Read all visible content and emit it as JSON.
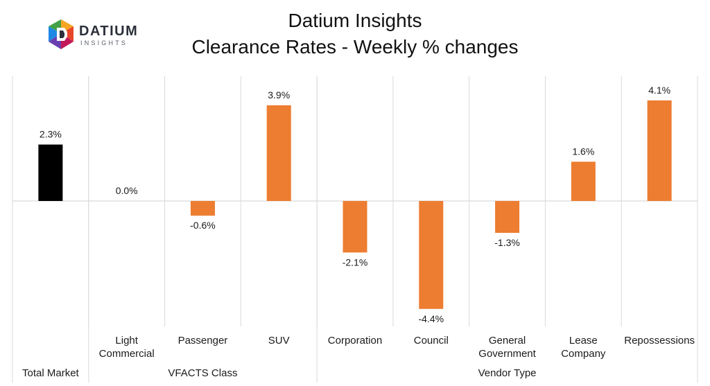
{
  "logo": {
    "word": "DATIUM",
    "sub": "INSIGHTS"
  },
  "chart_data": {
    "type": "bar",
    "title": "Datium Insights",
    "subtitle": "Clearance Rates - Weekly % changes",
    "categories": [
      "",
      "Light Commercial",
      "Passenger",
      "SUV",
      "Corporation",
      "Council",
      "General Government",
      "Lease Company",
      "Repossessions"
    ],
    "category_lines": [
      [
        ""
      ],
      [
        "Light",
        "Commercial"
      ],
      [
        "Passenger"
      ],
      [
        "SUV"
      ],
      [
        "Corporation"
      ],
      [
        "Council"
      ],
      [
        "General",
        "Government"
      ],
      [
        "Lease",
        "Company"
      ],
      [
        "Repossessions"
      ]
    ],
    "values": [
      2.3,
      0.0,
      -0.6,
      3.9,
      -2.1,
      -4.4,
      -1.3,
      1.6,
      4.1
    ],
    "data_labels": [
      "2.3%",
      "0.0%",
      "-0.6%",
      "3.9%",
      "-2.1%",
      "-4.4%",
      "-1.3%",
      "1.6%",
      "4.1%"
    ],
    "bar_colors": [
      "#000000",
      "#ED7D31",
      "#ED7D31",
      "#ED7D31",
      "#ED7D31",
      "#ED7D31",
      "#ED7D31",
      "#ED7D31",
      "#ED7D31"
    ],
    "groups": [
      {
        "label": "Total Market",
        "categories": [
          0
        ]
      },
      {
        "label": "VFACTS Class",
        "categories": [
          1,
          2,
          3
        ]
      },
      {
        "label": "Vendor Type",
        "categories": [
          4,
          5,
          6,
          7,
          8
        ]
      }
    ],
    "ylim": [
      -5.5,
      5.0
    ],
    "grid": false,
    "legend": "none",
    "colors": {
      "total": "#000000",
      "segment": "#ED7D31",
      "axis": "#d9d9d9"
    }
  }
}
